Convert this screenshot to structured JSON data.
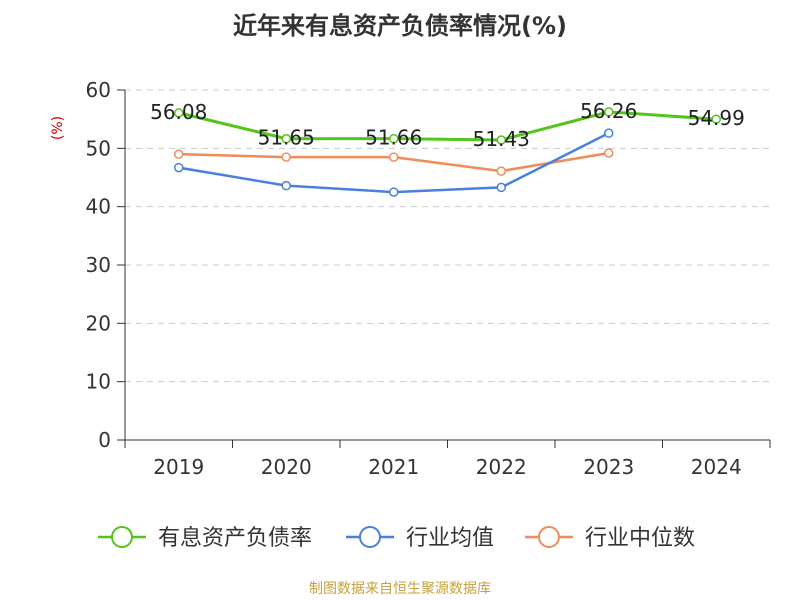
{
  "title": "近年来有息资产负债率情况(%)",
  "source": "制图数据来自恒生聚源数据库",
  "chart_data": {
    "type": "line",
    "title": "近年来有息资产负债率情况(%)",
    "ylabel": "(%)",
    "xlabel": "",
    "categories": [
      "2019",
      "2020",
      "2021",
      "2022",
      "2023",
      "2024"
    ],
    "ylim": [
      0,
      60
    ],
    "yticks": [
      0,
      10,
      20,
      30,
      40,
      50,
      60
    ],
    "grid": true,
    "legend_position": "bottom",
    "series": [
      {
        "name": "有息资产负债率",
        "color": "#52c41a",
        "values": [
          56.08,
          51.65,
          51.66,
          51.43,
          56.26,
          54.99
        ],
        "labels": [
          "56.08",
          "51.65",
          "51.66",
          "51.43",
          "56.26",
          "54.99"
        ]
      },
      {
        "name": "行业均值",
        "color": "#4a7fde",
        "values": [
          46.7,
          43.6,
          42.5,
          43.3,
          52.6,
          null
        ]
      },
      {
        "name": "行业中位数",
        "color": "#f08c5a",
        "values": [
          49.0,
          48.5,
          48.5,
          46.1,
          49.2,
          null
        ]
      }
    ]
  }
}
